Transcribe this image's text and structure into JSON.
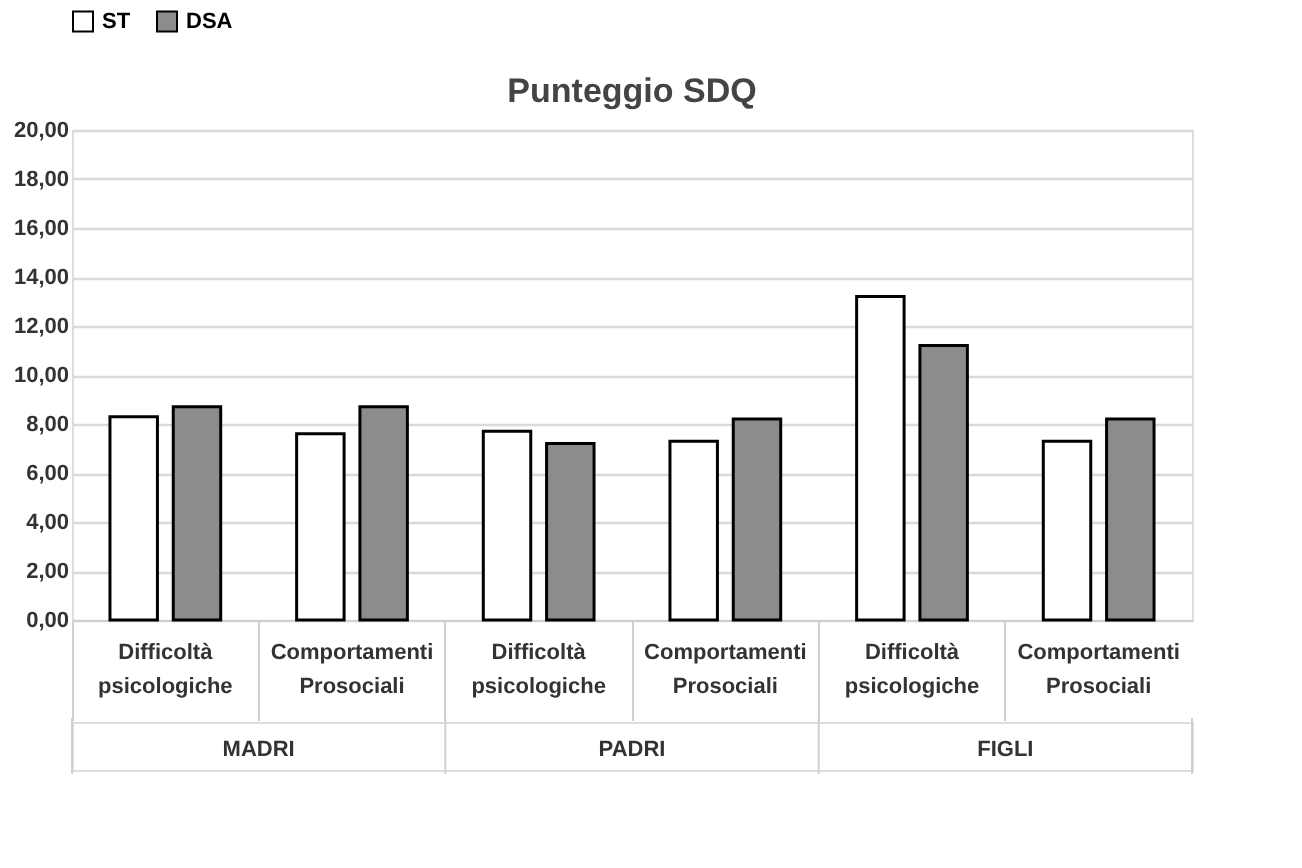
{
  "chart_data": {
    "type": "bar",
    "title": "Punteggio SDQ",
    "categories": [
      "Difficoltà psicologiche",
      "Comportamenti Prosociali",
      "Difficoltà psicologiche",
      "Comportamenti Prosociali",
      "Difficoltà psicologiche",
      "Comportamenti Prosociali"
    ],
    "series": [
      {
        "name": "ST",
        "color": "#ffffff",
        "values": [
          8.3,
          7.6,
          7.7,
          7.3,
          13.2,
          7.3
        ]
      },
      {
        "name": "DSA",
        "color": "#8c8c8c",
        "values": [
          8.7,
          8.7,
          7.2,
          8.2,
          11.2,
          8.2
        ]
      }
    ],
    "annotations": [
      "MADRI",
      "PADRI",
      "FIGLI"
    ],
    "ylim": [
      0,
      20
    ],
    "yticks": [
      {
        "value": 0,
        "label": "0,00"
      },
      {
        "value": 2,
        "label": "2,00"
      },
      {
        "value": 4,
        "label": "4,00"
      },
      {
        "value": 6,
        "label": "6,00"
      },
      {
        "value": 8,
        "label": "8,00"
      },
      {
        "value": 10,
        "label": "10,00"
      },
      {
        "value": 12,
        "label": "12,00"
      },
      {
        "value": 14,
        "label": "14,00"
      },
      {
        "value": 16,
        "label": "16,00"
      },
      {
        "value": 18,
        "label": "18,00"
      },
      {
        "value": 20,
        "label": "20,00"
      }
    ],
    "grid": "y",
    "legend": "top"
  }
}
